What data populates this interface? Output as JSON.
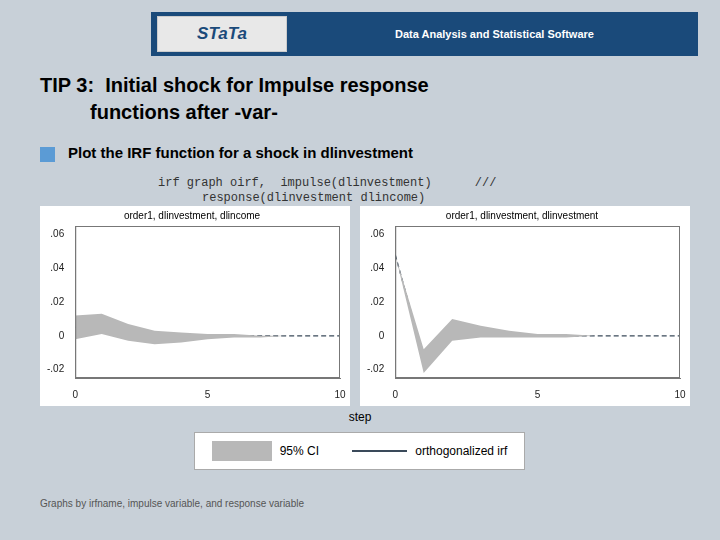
{
  "title": [
    "TIP 3:  Initial shock for Impulse response",
    "         functions after -var-"
  ],
  "annotations": [
    "STaTa",
    "Data Analysis and Statistical Software",
    "Plot the IRF function for a shock in dlinvestment",
    "irf graph oirf,  impulse(dlinvestment)      ///",
    "response(dlinvestment dlincome)",
    "Graphs by irfname, impulse variable, and response variable"
  ],
  "xlabel": "step",
  "legend": "bottom",
  "chart_data": [
    {
      "type": "line",
      "subtitle": "order1, dlinvestment, dlincome",
      "grid": false,
      "x": [
        0,
        1,
        2,
        3,
        4,
        5,
        6,
        7,
        8,
        9,
        10
      ],
      "series": [
        {
          "name": "95% CI",
          "type": "area",
          "color": "#b8b8b8",
          "lower": [
            -0.002,
            0.001,
            -0.003,
            -0.005,
            -0.004,
            -0.002,
            -0.001,
            -0.001,
            0.0,
            0.0,
            0.0
          ],
          "upper": [
            0.012,
            0.013,
            0.007,
            0.003,
            0.002,
            0.001,
            0.001,
            0.0,
            0.0,
            0.0,
            0.0
          ]
        },
        {
          "name": "orthogonalized irf",
          "type": "line",
          "color": "#3a4a5a",
          "line_style": "dashed",
          "values": [
            0.005,
            0.007,
            0.002,
            -0.001,
            -0.001,
            0.0,
            0.0,
            0.0,
            0.0,
            0.0,
            0.0
          ]
        }
      ],
      "xlim": [
        0,
        10
      ],
      "xticks": [
        0,
        5,
        10
      ],
      "ylim": [
        -0.025,
        0.065
      ],
      "yticks": [
        {
          "value": -0.02,
          "label": "-.02"
        },
        0,
        {
          "value": 0.02,
          "label": ".02"
        },
        {
          "value": 0.04,
          "label": ".04"
        },
        {
          "value": 0.06,
          "label": ".06"
        }
      ]
    },
    {
      "type": "line",
      "subtitle": "order1, dlinvestment, dlinvestment",
      "grid": false,
      "x": [
        0,
        1,
        2,
        3,
        4,
        5,
        6,
        7,
        8,
        9,
        10
      ],
      "series": [
        {
          "name": "95% CI",
          "type": "area",
          "color": "#b8b8b8",
          "lower": [
            0.048,
            -0.022,
            -0.003,
            -0.001,
            -0.001,
            -0.001,
            -0.001,
            0.0,
            0.0,
            0.0,
            0.0
          ],
          "upper": [
            0.048,
            -0.008,
            0.01,
            0.006,
            0.003,
            0.001,
            0.001,
            0.0,
            0.0,
            0.0,
            0.0
          ]
        },
        {
          "name": "orthogonalized irf",
          "type": "line",
          "color": "#3a4a5a",
          "line_style": "dashed",
          "values": [
            0.048,
            -0.013,
            0.006,
            0.003,
            0.001,
            0.0,
            0.0,
            0.0,
            0.0,
            0.0,
            0.0
          ]
        }
      ],
      "xlim": [
        0,
        10
      ],
      "xticks": [
        0,
        5,
        10
      ],
      "ylim": [
        -0.025,
        0.065
      ],
      "yticks": [
        {
          "value": -0.02,
          "label": "-.02"
        },
        0,
        {
          "value": 0.02,
          "label": ".02"
        },
        {
          "value": 0.04,
          "label": ".04"
        },
        {
          "value": 0.06,
          "label": ".06"
        }
      ]
    }
  ]
}
